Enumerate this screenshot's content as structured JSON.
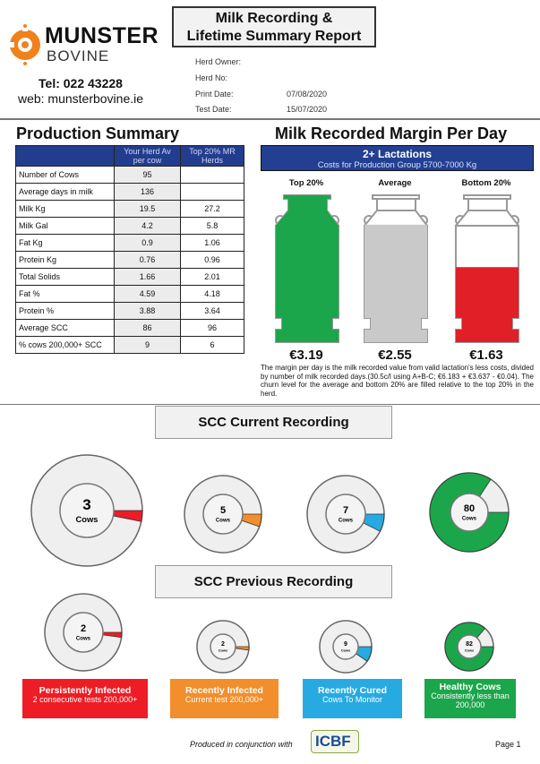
{
  "header": {
    "brand_line1": "MUNSTER",
    "brand_line2": "BOVINE",
    "tel": "Tel: 022 43228",
    "web": "web: munsterbovine.ie",
    "title_line1": "Milk Recording &",
    "title_line2": "Lifetime Summary Report",
    "fields": [
      {
        "label": "Herd Owner:",
        "value": ""
      },
      {
        "label": "Herd No:",
        "value": ""
      },
      {
        "label": "Print Date:",
        "value": "07/08/2020"
      },
      {
        "label": "Test Date:",
        "value": "15/07/2020"
      }
    ]
  },
  "production": {
    "title": "Production Summary",
    "col1": "Your Herd Av per cow",
    "col2": "Top 20% MR Herds",
    "rows": [
      [
        "Number of Cows",
        "95",
        ""
      ],
      [
        "Average days in milk",
        "136",
        ""
      ],
      [
        "Milk Kg",
        "19.5",
        "27.2"
      ],
      [
        "Milk Gal",
        "4.2",
        "5.8"
      ],
      [
        "Fat Kg",
        "0.9",
        "1.06"
      ],
      [
        "Protein Kg",
        "0.76",
        "0.96"
      ],
      [
        "Total Solids",
        "1.66",
        "2.01"
      ],
      [
        "Fat %",
        "4.59",
        "4.18"
      ],
      [
        "Protein %",
        "3.88",
        "3.64"
      ],
      [
        "Average SCC",
        "86",
        "96"
      ],
      [
        "% cows 200,000+ SCC",
        "9",
        "6"
      ]
    ]
  },
  "margin": {
    "title": "Milk Recorded Margin Per Day",
    "banner_title": "2+ Lactations",
    "banner_sub": "Costs for Production Group 5700-7000 Kg",
    "churns": [
      {
        "label": "Top 20%",
        "value": "€3.19",
        "amount": 3.19,
        "color": "#1ba64b"
      },
      {
        "label": "Average",
        "value": "€2.55",
        "amount": 2.55,
        "color": "#c9c9c9"
      },
      {
        "label": "Bottom 20%",
        "value": "€1.63",
        "amount": 1.63,
        "color": "#e11f26"
      }
    ],
    "note": "The margin per day is the milk recorded value from valid lactation's less costs, divided by number of milk recorded days.(30.5c/l using A+B-C; €6.183 + €3.637 - €0.04). The churn level for the average and bottom 20% are filled relative to the top 20% in the herd."
  },
  "scc": {
    "herd_total": 95,
    "current_title": "SCC Current Recording",
    "previous_title": "SCC Previous Recording",
    "unit": "Cows",
    "current": [
      {
        "count": 3,
        "label": "3"
      },
      {
        "count": 5,
        "label": "5"
      },
      {
        "count": 7,
        "label": "7"
      },
      {
        "count": 80,
        "label": "80"
      }
    ],
    "previous": [
      {
        "count": 2,
        "label": "2"
      },
      {
        "count": 2,
        "label": "2"
      },
      {
        "count": 9,
        "label": "9"
      },
      {
        "count": 82,
        "label": "82"
      }
    ],
    "categories": [
      {
        "title": "Persistently Infected",
        "sub": "2 consecutive tests 200,000+",
        "color": "#ee1c24"
      },
      {
        "title": "Recently Infected",
        "sub": "Current test 200,000+",
        "color": "#f28e2b"
      },
      {
        "title": "Recently Cured",
        "sub": "Cows To Monitor",
        "color": "#27aae1"
      },
      {
        "title": "Healthy Cows",
        "sub": "Consistently less than 200,000",
        "color": "#1ba64b"
      }
    ]
  },
  "footer": {
    "produced": "Produced in conjunction with",
    "partner": "ICBF",
    "page": "Page 1"
  }
}
